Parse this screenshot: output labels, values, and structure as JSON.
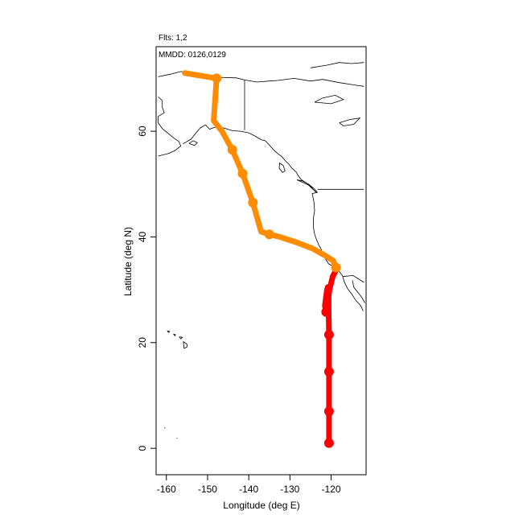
{
  "chart_data": {
    "type": "line",
    "annotations": [
      "Flts: 1,2",
      "MMDD: 0126,0129"
    ],
    "xlabel": "Longitude (deg E)",
    "ylabel": "Latitude (deg N)",
    "xlim": [
      -162.5,
      -111.5
    ],
    "ylim": [
      -5,
      76
    ],
    "x_ticks": [
      -160,
      -150,
      -140,
      -130,
      -120
    ],
    "y_ticks": [
      0,
      20,
      40,
      60
    ],
    "grid": false,
    "series": [
      {
        "color": "#ff0000",
        "x": [
          -120.5,
          -120.5,
          -120.5,
          -120.5,
          -120.6,
          -120.6,
          -120.8,
          -121.0,
          -121.5,
          -121.2,
          -120.4,
          -119.6,
          -118.6
        ],
        "y": [
          1.0,
          7.0,
          14.5,
          21.5,
          26.0,
          29.0,
          30.5,
          30.0,
          27.0,
          25.5,
          30.0,
          32.5,
          34.0
        ],
        "markers_x": [
          -120.5,
          -120.5,
          -120.5,
          -120.5,
          -121.2
        ],
        "markers_y": [
          1.0,
          7.0,
          14.5,
          21.5,
          25.8
        ]
      },
      {
        "color": "#ff8c00",
        "x": [
          -118.8,
          -119.5,
          -121.5,
          -124.5,
          -128.5,
          -132.5,
          -135.0,
          -137.0,
          -139.0,
          -141.5,
          -144.0,
          -146.5,
          -148.5,
          -147.8,
          -155.5
        ],
        "y": [
          34.2,
          35.5,
          36.5,
          37.8,
          39.0,
          40.0,
          40.5,
          41.0,
          46.5,
          52.0,
          56.5,
          60.0,
          62.0,
          70.0,
          71.0
        ],
        "markers_x": [
          -118.8,
          -135.0,
          -139.0,
          -141.5,
          -144.0,
          -147.8
        ],
        "markers_y": [
          34.2,
          40.5,
          46.5,
          52.0,
          56.5,
          70.0
        ]
      }
    ]
  }
}
